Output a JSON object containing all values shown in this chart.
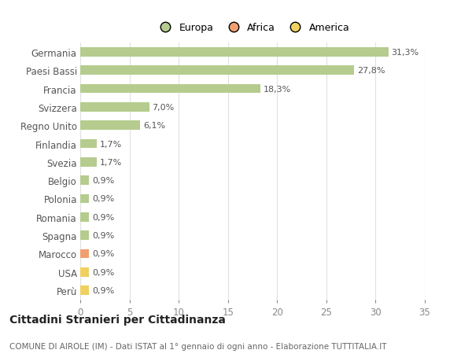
{
  "categories": [
    "Germania",
    "Paesi Bassi",
    "Francia",
    "Svizzera",
    "Regno Unito",
    "Finlandia",
    "Svezia",
    "Belgio",
    "Polonia",
    "Romania",
    "Spagna",
    "Marocco",
    "USA",
    "Perù"
  ],
  "values": [
    31.3,
    27.8,
    18.3,
    7.0,
    6.1,
    1.7,
    1.7,
    0.9,
    0.9,
    0.9,
    0.9,
    0.9,
    0.9,
    0.9
  ],
  "labels": [
    "31,3%",
    "27,8%",
    "18,3%",
    "7,0%",
    "6,1%",
    "1,7%",
    "1,7%",
    "0,9%",
    "0,9%",
    "0,9%",
    "0,9%",
    "0,9%",
    "0,9%",
    "0,9%"
  ],
  "continents": [
    "Europa",
    "Europa",
    "Europa",
    "Europa",
    "Europa",
    "Europa",
    "Europa",
    "Europa",
    "Europa",
    "Europa",
    "Europa",
    "Africa",
    "America",
    "America"
  ],
  "colors": {
    "Europa": "#b5cc8e",
    "Africa": "#f0a070",
    "America": "#f0d060"
  },
  "legend": [
    {
      "label": "Europa",
      "color": "#b5cc8e"
    },
    {
      "label": "Africa",
      "color": "#f0a070"
    },
    {
      "label": "America",
      "color": "#f0d060"
    }
  ],
  "xlim": [
    0,
    35
  ],
  "xticks": [
    0,
    5,
    10,
    15,
    20,
    25,
    30,
    35
  ],
  "title": "Cittadini Stranieri per Cittadinanza",
  "subtitle": "COMUNE DI AIROLE (IM) - Dati ISTAT al 1° gennaio di ogni anno - Elaborazione TUTTITALIA.IT",
  "bg_color": "#ffffff",
  "grid_color": "#e0e0e0",
  "bar_height": 0.5,
  "label_fontsize": 8,
  "ytick_fontsize": 8.5,
  "xtick_fontsize": 8.5,
  "title_fontsize": 10,
  "subtitle_fontsize": 7.5
}
